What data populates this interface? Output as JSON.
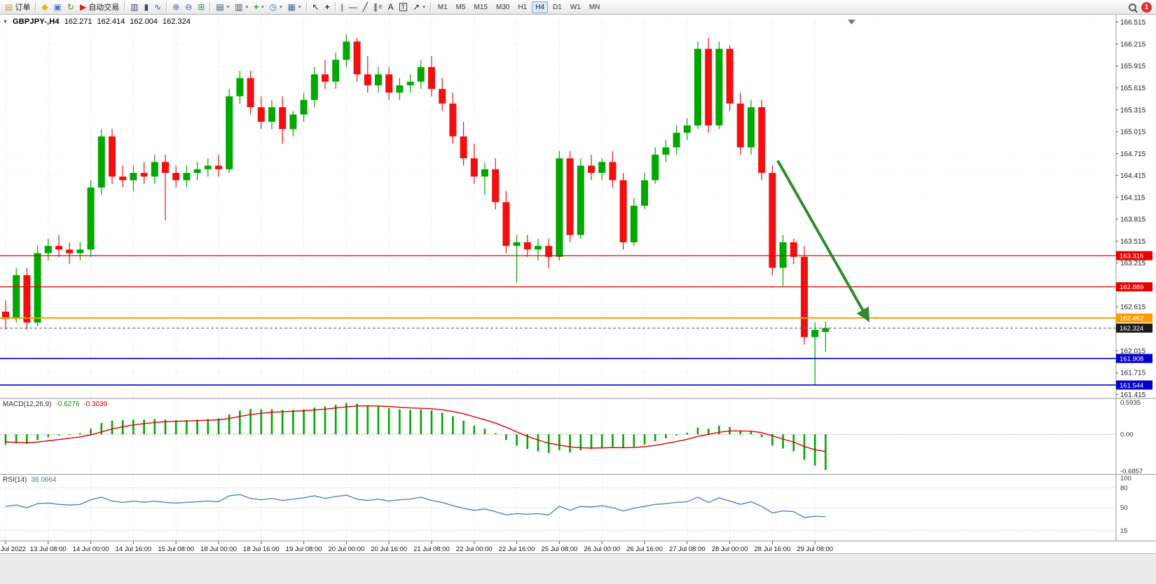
{
  "toolbar": {
    "groups": [
      {
        "items": [
          {
            "name": "new-order-button",
            "glyph": "▤",
            "glyph_color": "#caa22a",
            "label": "订单"
          }
        ]
      },
      {
        "items": [
          {
            "name": "chart-windows-button",
            "glyph": "◆",
            "glyph_color": "#e6b400"
          },
          {
            "name": "market-profile-button",
            "glyph": "▣",
            "glyph_color": "#4a78c0"
          },
          {
            "name": "refresh-button",
            "glyph": "↻",
            "glyph_color": "#2f9e2f"
          },
          {
            "name": "auto-trading-button",
            "glyph": "▶",
            "glyph_color": "#d62020",
            "label": "自动交易"
          }
        ]
      },
      {
        "items": [
          {
            "name": "bar-chart-type-button",
            "glyph": "▥",
            "glyph_color": "#3c5064"
          },
          {
            "name": "candlestick-chart-type-button",
            "glyph": "▮",
            "glyph_color": "#3c5064"
          },
          {
            "name": "line-chart-type-button",
            "glyph": "∿",
            "glyph_color": "#3c5064"
          }
        ]
      },
      {
        "items": [
          {
            "name": "zoom-in-button",
            "glyph": "⊕",
            "glyph_color": "#3a6ea5"
          },
          {
            "name": "zoom-out-button",
            "glyph": "⊖",
            "glyph_color": "#3a6ea5"
          },
          {
            "name": "tile-windows-button",
            "glyph": "⊞",
            "glyph_color": "#2f9e2f"
          }
        ]
      },
      {
        "items": [
          {
            "name": "new-chart-button",
            "glyph": "▤",
            "glyph_color": "#3c5064",
            "dropdown": true
          },
          {
            "name": "profiles-button",
            "glyph": "▥",
            "glyph_color": "#3c5064",
            "dropdown": true
          },
          {
            "name": "add-indicator-button",
            "glyph": "+",
            "glyph_color": "#1f9e1f",
            "bold": true,
            "dropdown": true
          },
          {
            "name": "periods-button",
            "glyph": "◷",
            "glyph_color": "#3a6ea5",
            "dropdown": true
          },
          {
            "name": "templates-button",
            "glyph": "▦",
            "glyph_color": "#3a6ea5",
            "dropdown": true
          }
        ]
      },
      {
        "items": [
          {
            "name": "cursor-button",
            "glyph": "↖",
            "glyph_color": "#222"
          },
          {
            "name": "crosshair-button",
            "glyph": "+",
            "glyph_color": "#222",
            "bold": true
          }
        ]
      },
      {
        "items": [
          {
            "name": "vertical-line-button",
            "glyph": "|",
            "glyph_color": "#222"
          },
          {
            "name": "horizontal-line-button",
            "glyph": "—",
            "glyph_color": "#222"
          },
          {
            "name": "trendline-button",
            "glyph": "╱",
            "glyph_color": "#222"
          },
          {
            "name": "equidistant-channel-button",
            "glyph": "∥",
            "glyph_color": "#222",
            "sub": "E"
          },
          {
            "name": "text-button",
            "glyph": "A",
            "glyph_color": "#222"
          },
          {
            "name": "label-button",
            "glyph": "T",
            "glyph_color": "#222",
            "boxed": true
          },
          {
            "name": "arrows-button",
            "glyph": "↗",
            "glyph_color": "#222",
            "dropdown": true
          }
        ]
      }
    ],
    "timeframes": [
      {
        "label": "M1"
      },
      {
        "label": "M5"
      },
      {
        "label": "M15"
      },
      {
        "label": "M30"
      },
      {
        "label": "H1"
      },
      {
        "label": "H4",
        "active": true
      },
      {
        "label": "D1"
      },
      {
        "label": "W1"
      },
      {
        "label": "MN"
      }
    ],
    "right_items": [
      {
        "name": "search-button",
        "type": "magnifier"
      },
      {
        "name": "notifications-badge",
        "type": "badge",
        "label": "1"
      }
    ]
  },
  "chart": {
    "title": "GBPJPY-,H4",
    "ohlc": {
      "open": "162.271",
      "high": "162.414",
      "low": "162.004",
      "close": "162.324"
    }
  },
  "chart_data": {
    "type": "candlestick",
    "symbol": "GBPJPY-",
    "timeframe": "H4",
    "colors": {
      "up": "#00a800",
      "down": "#f01010",
      "macd_hist": "#00a800",
      "macd_signal": "#dd0000",
      "rsi_line": "#4a86c8",
      "arrow": "#2e8b2e"
    },
    "label_every": 4,
    "x_labels": [
      "Jul 2022",
      "13 Jul 08:00",
      "14 Jul 00:00",
      "14 Jul 16:00",
      "15 Jul 08:00",
      "18 Jul 00:00",
      "18 Jul 16:00",
      "19 Jul 08:00",
      "20 Jul 00:00",
      "20 Jul 16:00",
      "21 Jul 08:00",
      "22 Jul 00:00",
      "22 Jul 16:00",
      "25 Jul 08:00",
      "26 Jul 00:00",
      "26 Jul 16:00",
      "27 Jul 08:00",
      "28 Jul 00:00",
      "28 Jul 16:00",
      "29 Jul 08:00"
    ],
    "price_axis": {
      "max": 166.56,
      "min": 161.37,
      "tick_labels": [
        "166.515",
        "166.215",
        "165.915",
        "165.615",
        "165.315",
        "165.015",
        "164.715",
        "164.415",
        "164.115",
        "163.815",
        "163.515",
        "163.215",
        "162.915",
        "162.615",
        "162.315",
        "162.015",
        "161.715",
        "161.415"
      ]
    },
    "candles": [
      [
        162.55,
        162.7,
        162.3,
        162.45
      ],
      [
        162.45,
        163.15,
        162.4,
        163.05
      ],
      [
        163.05,
        163.15,
        162.3,
        162.4
      ],
      [
        162.4,
        163.45,
        162.35,
        163.35
      ],
      [
        163.35,
        163.55,
        163.25,
        163.45
      ],
      [
        163.45,
        163.6,
        163.3,
        163.4
      ],
      [
        163.4,
        163.5,
        163.2,
        163.35
      ],
      [
        163.35,
        163.5,
        163.25,
        163.4
      ],
      [
        163.4,
        164.35,
        163.3,
        164.25
      ],
      [
        164.25,
        165.05,
        164.15,
        164.95
      ],
      [
        164.95,
        165.05,
        164.3,
        164.4
      ],
      [
        164.4,
        164.55,
        164.25,
        164.35
      ],
      [
        164.35,
        164.55,
        164.2,
        164.45
      ],
      [
        164.45,
        164.6,
        164.3,
        164.4
      ],
      [
        164.4,
        164.7,
        164.3,
        164.6
      ],
      [
        164.6,
        164.7,
        163.8,
        164.45
      ],
      [
        164.45,
        164.55,
        164.25,
        164.35
      ],
      [
        164.35,
        164.55,
        164.25,
        164.45
      ],
      [
        164.45,
        164.6,
        164.35,
        164.5
      ],
      [
        164.5,
        164.65,
        164.4,
        164.55
      ],
      [
        164.55,
        164.7,
        164.4,
        164.5
      ],
      [
        164.5,
        165.6,
        164.45,
        165.5
      ],
      [
        165.5,
        165.85,
        165.4,
        165.75
      ],
      [
        165.75,
        165.85,
        165.25,
        165.35
      ],
      [
        165.35,
        165.5,
        165.05,
        165.15
      ],
      [
        165.15,
        165.45,
        165.05,
        165.35
      ],
      [
        165.35,
        165.5,
        164.85,
        165.05
      ],
      [
        165.05,
        165.3,
        164.95,
        165.25
      ],
      [
        165.25,
        165.55,
        165.15,
        165.45
      ],
      [
        165.45,
        165.9,
        165.35,
        165.8
      ],
      [
        165.8,
        166.0,
        165.6,
        165.7
      ],
      [
        165.7,
        166.1,
        165.6,
        166.0
      ],
      [
        166.0,
        166.35,
        165.9,
        166.25
      ],
      [
        166.25,
        166.3,
        165.7,
        165.8
      ],
      [
        165.8,
        166.05,
        165.55,
        165.65
      ],
      [
        165.65,
        165.9,
        165.55,
        165.8
      ],
      [
        165.8,
        165.9,
        165.45,
        165.55
      ],
      [
        165.55,
        165.75,
        165.45,
        165.65
      ],
      [
        165.65,
        165.8,
        165.55,
        165.7
      ],
      [
        165.7,
        166.0,
        165.6,
        165.9
      ],
      [
        165.9,
        166.05,
        165.5,
        165.6
      ],
      [
        165.6,
        165.75,
        165.3,
        165.4
      ],
      [
        165.4,
        165.55,
        164.85,
        164.95
      ],
      [
        164.95,
        165.15,
        164.55,
        164.65
      ],
      [
        164.65,
        164.85,
        164.3,
        164.4
      ],
      [
        164.4,
        164.6,
        164.15,
        164.5
      ],
      [
        164.5,
        164.65,
        163.95,
        164.05
      ],
      [
        164.05,
        164.2,
        163.35,
        163.45
      ],
      [
        163.45,
        163.6,
        162.95,
        163.5
      ],
      [
        163.5,
        163.6,
        163.3,
        163.4
      ],
      [
        163.4,
        163.55,
        163.25,
        163.45
      ],
      [
        163.45,
        163.55,
        163.15,
        163.3
      ],
      [
        163.3,
        164.75,
        163.25,
        164.65
      ],
      [
        164.65,
        164.75,
        163.5,
        163.6
      ],
      [
        163.6,
        164.65,
        163.55,
        164.55
      ],
      [
        164.55,
        164.7,
        164.35,
        164.45
      ],
      [
        164.45,
        164.65,
        164.35,
        164.6
      ],
      [
        164.6,
        164.75,
        164.25,
        164.35
      ],
      [
        164.35,
        164.45,
        163.4,
        163.5
      ],
      [
        163.5,
        164.1,
        163.45,
        164.0
      ],
      [
        164.0,
        164.45,
        163.95,
        164.35
      ],
      [
        164.35,
        164.8,
        164.3,
        164.7
      ],
      [
        164.7,
        164.9,
        164.6,
        164.8
      ],
      [
        164.8,
        165.1,
        164.7,
        165.0
      ],
      [
        165.0,
        165.2,
        164.9,
        165.1
      ],
      [
        165.1,
        166.25,
        165.05,
        166.15
      ],
      [
        166.15,
        166.3,
        165.0,
        165.1
      ],
      [
        165.1,
        166.25,
        165.05,
        166.15
      ],
      [
        166.15,
        166.2,
        165.3,
        165.4
      ],
      [
        165.4,
        165.55,
        164.7,
        164.8
      ],
      [
        164.8,
        165.45,
        164.7,
        165.35
      ],
      [
        165.35,
        165.45,
        164.35,
        164.45
      ],
      [
        164.45,
        164.55,
        163.05,
        163.15
      ],
      [
        163.15,
        163.6,
        162.9,
        163.5
      ],
      [
        163.5,
        163.55,
        163.2,
        163.3
      ],
      [
        163.3,
        163.45,
        162.1,
        162.2
      ],
      [
        162.2,
        162.4,
        161.55,
        162.3
      ],
      [
        162.271,
        162.414,
        162.004,
        162.324
      ]
    ],
    "horizontal_lines": [
      {
        "price": 163.316,
        "color": "#e60000",
        "width": 1.3,
        "badge": "163.316",
        "badge_color": "#e60000"
      },
      {
        "price": 162.889,
        "color": "#e60000",
        "width": 1.3,
        "badge": "162.889",
        "badge_color": "#e60000"
      },
      {
        "price": 162.462,
        "color": "#ff9c00",
        "width": 2,
        "badge": "162.462",
        "badge_color": "#ff9c00"
      },
      {
        "price": 162.324,
        "color": "#606060",
        "width": 1,
        "style": "dashed",
        "badge": "162.324",
        "badge_color": "#1a1a1a"
      },
      {
        "price": 161.908,
        "color": "#0000cc",
        "width": 1.6,
        "badge": "161.908",
        "badge_color": "#0000cc"
      },
      {
        "price": 161.544,
        "color": "#0000cc",
        "width": 1.6,
        "badge": "161.544",
        "badge_color": "#0000cc"
      }
    ],
    "arrow": {
      "from_index": 72.5,
      "from_price": 164.62,
      "to_index": 81,
      "to_price": 162.44
    },
    "indicators": {
      "macd": {
        "label": "MACD(12,26,9)",
        "value_main": "-0.6276",
        "value_signal": "-0.3039",
        "axis": {
          "max": 0.62,
          "min": -0.7,
          "labels": [
            {
              "text": "0.5935",
              "value": 0.5935
            },
            {
              "text": "0.00",
              "value": 0
            },
            {
              "text": "-0.6857",
              "value": -0.6857
            }
          ]
        },
        "hist": [
          -0.18,
          -0.16,
          -0.17,
          -0.1,
          -0.05,
          -0.02,
          0.0,
          0.02,
          0.1,
          0.2,
          0.24,
          0.25,
          0.26,
          0.26,
          0.27,
          0.26,
          0.25,
          0.25,
          0.26,
          0.27,
          0.28,
          0.35,
          0.42,
          0.45,
          0.44,
          0.44,
          0.43,
          0.43,
          0.44,
          0.47,
          0.49,
          0.52,
          0.55,
          0.54,
          0.51,
          0.49,
          0.46,
          0.44,
          0.43,
          0.44,
          0.42,
          0.38,
          0.32,
          0.24,
          0.15,
          0.1,
          0.02,
          -0.1,
          -0.2,
          -0.26,
          -0.3,
          -0.33,
          -0.28,
          -0.32,
          -0.28,
          -0.26,
          -0.23,
          -0.22,
          -0.24,
          -0.22,
          -0.18,
          -0.12,
          -0.07,
          -0.02,
          0.03,
          0.12,
          0.1,
          0.15,
          0.13,
          0.06,
          0.05,
          -0.05,
          -0.2,
          -0.25,
          -0.3,
          -0.45,
          -0.55,
          -0.6276
        ],
        "signal": [
          -0.135,
          -0.141,
          -0.148,
          -0.136,
          -0.114,
          -0.091,
          -0.068,
          -0.046,
          -0.01,
          0.043,
          0.095,
          0.134,
          0.165,
          0.189,
          0.209,
          0.222,
          0.229,
          0.234,
          0.241,
          0.248,
          0.256,
          0.279,
          0.315,
          0.348,
          0.371,
          0.389,
          0.399,
          0.407,
          0.415,
          0.429,
          0.444,
          0.463,
          0.485,
          0.499,
          0.502,
          0.499,
          0.489,
          0.477,
          0.465,
          0.459,
          0.449,
          0.432,
          0.404,
          0.363,
          0.31,
          0.257,
          0.198,
          0.124,
          0.043,
          -0.033,
          -0.1,
          -0.157,
          -0.188,
          -0.221,
          -0.236,
          -0.242,
          -0.239,
          -0.234,
          -0.236,
          -0.232,
          -0.219,
          -0.194,
          -0.163,
          -0.127,
          -0.088,
          -0.036,
          -0.002,
          0.036,
          0.06,
          0.06,
          0.057,
          0.03,
          -0.027,
          -0.083,
          -0.137,
          -0.215,
          -0.27,
          -0.3039
        ]
      },
      "rsi": {
        "label": "RSI(14)",
        "value": "36.0664",
        "levels": [
          80,
          50,
          15
        ],
        "axis_labels": [
          {
            "text": "100",
            "value": 100
          },
          {
            "text": "80",
            "value": 80
          },
          {
            "text": "50",
            "value": 50
          },
          {
            "text": "15",
            "value": 15
          }
        ],
        "series": [
          52,
          54,
          50,
          56,
          57,
          55,
          54,
          55,
          62,
          66,
          60,
          58,
          60,
          58,
          60,
          58,
          57,
          58,
          59,
          60,
          59,
          68,
          70,
          64,
          62,
          64,
          61,
          63,
          65,
          68,
          64,
          67,
          69,
          63,
          61,
          63,
          60,
          62,
          63,
          66,
          61,
          58,
          53,
          49,
          46,
          48,
          44,
          39,
          41,
          40,
          41,
          39,
          52,
          46,
          52,
          51,
          53,
          50,
          45,
          49,
          52,
          55,
          56,
          58,
          59,
          66,
          58,
          65,
          60,
          55,
          59,
          52,
          42,
          45,
          44,
          35,
          37,
          36.07
        ]
      }
    }
  }
}
